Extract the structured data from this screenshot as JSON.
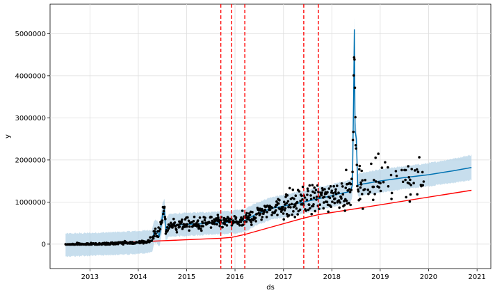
{
  "chart_data": {
    "type": "line",
    "xlabel": "ds",
    "ylabel": "y",
    "x_ticks": [
      "2013",
      "2014",
      "2015",
      "2016",
      "2017",
      "2018",
      "2019",
      "2020",
      "2021"
    ],
    "y_ticks": [
      "0",
      "1000000",
      "2000000",
      "3000000",
      "4000000",
      "5000000"
    ],
    "xlim": [
      "2012-03-06",
      "2021-04-15"
    ],
    "ylim": [
      -580000,
      5700000
    ],
    "grid": true,
    "colors": {
      "forecast": "#0072B2",
      "uncertainty": "#a9cde3",
      "trend": "#ff0000",
      "changepoints": "#ff0000",
      "observed": "#000000",
      "grid": "#dddddd"
    },
    "changepoints": [
      "2015-09-16",
      "2015-12-06",
      "2016-03-15",
      "2017-06-03",
      "2017-09-21"
    ],
    "series": [
      {
        "kind": "forecast",
        "x": [
          "2012-07-01",
          "2013-01-01",
          "2013-07-01",
          "2014-01-01",
          "2014-04-15",
          "2014-05-01",
          "2014-05-20",
          "2014-06-10",
          "2014-06-25",
          "2014-07-05",
          "2014-07-12",
          "2014-07-18",
          "2014-07-25",
          "2014-08-01",
          "2014-08-20",
          "2014-09-05",
          "2015-01-01",
          "2015-06-01",
          "2015-09-16",
          "2015-12-06",
          "2016-03-15",
          "2016-06-01",
          "2016-10-01",
          "2017-01-01",
          "2017-06-03",
          "2017-09-21",
          "2018-01-01",
          "2018-03-01",
          "2018-05-20",
          "2018-06-05",
          "2018-06-15",
          "2018-06-20",
          "2018-06-25",
          "2018-07-05",
          "2018-07-15",
          "2018-08-05",
          "2018-10-01",
          "2019-01-01",
          "2019-07-01",
          "2020-01-01",
          "2020-07-01",
          "2020-11-20"
        ],
        "y": [
          -20000,
          -5000,
          15000,
          40000,
          70000,
          300000,
          300000,
          200000,
          500000,
          750000,
          750000,
          850000,
          350000,
          350000,
          450000,
          450000,
          470000,
          490000,
          510000,
          520000,
          560000,
          700000,
          850000,
          900000,
          1000000,
          1080000,
          1150000,
          1200000,
          1250000,
          1400000,
          3700000,
          5100000,
          2700000,
          2500000,
          1400000,
          1420000,
          1450000,
          1500000,
          1580000,
          1650000,
          1740000,
          1820000
        ]
      },
      {
        "kind": "trend",
        "x": [
          "2012-07-01",
          "2014-04-15",
          "2015-09-16",
          "2015-12-06",
          "2016-03-15",
          "2017-06-03",
          "2017-09-21",
          "2020-11-20"
        ],
        "y": [
          -20000,
          70000,
          140000,
          160000,
          230000,
          620000,
          700000,
          1280000
        ]
      }
    ]
  }
}
